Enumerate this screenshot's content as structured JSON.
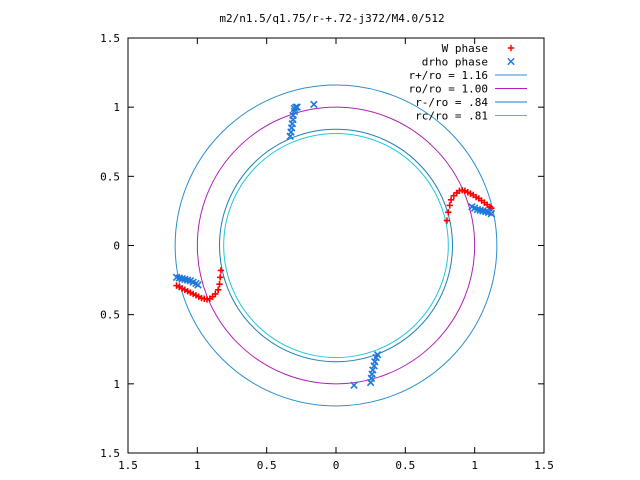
{
  "chart_data": {
    "type": "scatter",
    "title": "m2/n1.5/q1.75/r-+.72-j372/M4.0/512",
    "xlabel": "",
    "ylabel": "",
    "xlim": [
      -1.5,
      1.5
    ],
    "ylim": [
      -1.5,
      1.5
    ],
    "x_ticks": [
      -1.5,
      -1,
      -0.5,
      0,
      0.5,
      1,
      1.5
    ],
    "x_tick_labels": [
      "1.5",
      "1",
      "0.5",
      "0",
      "0.5",
      "1",
      "1.5"
    ],
    "y_ticks": [
      1.5,
      1,
      0.5,
      0,
      -0.5,
      -1,
      -1.5
    ],
    "y_tick_labels": [
      "1.5",
      "1",
      "0.5",
      "0",
      "0.5",
      "1",
      "1.5"
    ],
    "grid": false,
    "legend_position": "top-right",
    "series": [
      {
        "name": "W phase",
        "kind": "points",
        "marker": "+",
        "color": "#ff0000",
        "points": [
          [
            0.8,
            0.18
          ],
          [
            0.81,
            0.24
          ],
          [
            0.82,
            0.29
          ],
          [
            0.83,
            0.33
          ],
          [
            0.85,
            0.36
          ],
          [
            0.87,
            0.38
          ],
          [
            0.89,
            0.395
          ],
          [
            0.91,
            0.4
          ],
          [
            0.93,
            0.395
          ],
          [
            0.95,
            0.385
          ],
          [
            0.97,
            0.375
          ],
          [
            0.99,
            0.365
          ],
          [
            1.01,
            0.35
          ],
          [
            1.03,
            0.34
          ],
          [
            1.05,
            0.325
          ],
          [
            1.07,
            0.31
          ],
          [
            1.09,
            0.295
          ],
          [
            1.11,
            0.28
          ],
          [
            1.12,
            0.27
          ],
          [
            -0.83,
            -0.18
          ],
          [
            -0.835,
            -0.23
          ],
          [
            -0.84,
            -0.28
          ],
          [
            -0.85,
            -0.32
          ],
          [
            -0.87,
            -0.35
          ],
          [
            -0.89,
            -0.37
          ],
          [
            -0.91,
            -0.385
          ],
          [
            -0.93,
            -0.39
          ],
          [
            -0.95,
            -0.385
          ],
          [
            -0.97,
            -0.38
          ],
          [
            -0.99,
            -0.37
          ],
          [
            -1.01,
            -0.36
          ],
          [
            -1.03,
            -0.35
          ],
          [
            -1.05,
            -0.34
          ],
          [
            -1.07,
            -0.33
          ],
          [
            -1.09,
            -0.32
          ],
          [
            -1.11,
            -0.31
          ],
          [
            -1.13,
            -0.3
          ],
          [
            -1.15,
            -0.29
          ]
        ]
      },
      {
        "name": "drho phase",
        "kind": "points",
        "marker": "x",
        "color": "#1e78dc",
        "points": [
          [
            0.98,
            0.28
          ],
          [
            1.0,
            0.27
          ],
          [
            1.02,
            0.26
          ],
          [
            1.04,
            0.255
          ],
          [
            1.06,
            0.25
          ],
          [
            1.08,
            0.245
          ],
          [
            1.1,
            0.24
          ],
          [
            1.12,
            0.23
          ],
          [
            -1.15,
            -0.23
          ],
          [
            -1.13,
            -0.235
          ],
          [
            -1.11,
            -0.24
          ],
          [
            -1.09,
            -0.245
          ],
          [
            -1.07,
            -0.25
          ],
          [
            -1.05,
            -0.255
          ],
          [
            -1.03,
            -0.265
          ],
          [
            -1.01,
            -0.275
          ],
          [
            -0.995,
            -0.285
          ],
          [
            -0.33,
            0.79
          ],
          [
            -0.325,
            0.82
          ],
          [
            -0.32,
            0.85
          ],
          [
            -0.315,
            0.88
          ],
          [
            -0.31,
            0.91
          ],
          [
            -0.31,
            0.94
          ],
          [
            -0.3,
            0.97
          ],
          [
            -0.3,
            0.99
          ],
          [
            -0.29,
            1.0
          ],
          [
            -0.28,
            1.0
          ],
          [
            -0.16,
            1.02
          ],
          [
            0.25,
            -0.99
          ],
          [
            0.255,
            -0.96
          ],
          [
            0.26,
            -0.93
          ],
          [
            0.265,
            -0.9
          ],
          [
            0.275,
            -0.87
          ],
          [
            0.28,
            -0.84
          ],
          [
            0.29,
            -0.81
          ],
          [
            0.3,
            -0.79
          ],
          [
            0.13,
            -1.01
          ]
        ]
      },
      {
        "name": "r+/ro = 1.16",
        "kind": "circle",
        "radius": 1.16,
        "color": "#2a8fd0"
      },
      {
        "name": "ro/ro = 1.00",
        "kind": "circle",
        "radius": 1.0,
        "color": "#b020b8"
      },
      {
        "name": "r-/ro = .84",
        "kind": "circle",
        "radius": 0.84,
        "color": "#1f7db8"
      },
      {
        "name": "rc/ro = .81",
        "kind": "circle",
        "radius": 0.81,
        "color": "#20c8d8"
      }
    ]
  }
}
